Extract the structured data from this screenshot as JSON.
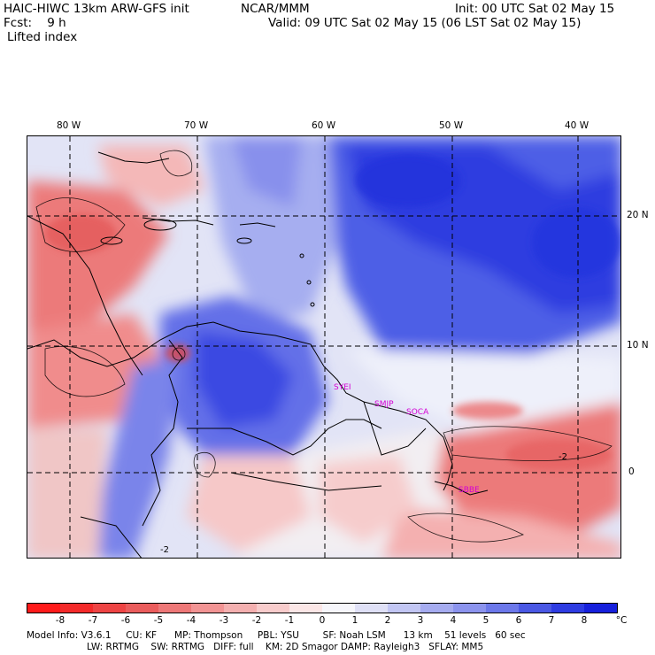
{
  "header": {
    "title": "HAIC-HIWC 13km ARW-GFS init",
    "org": "NCAR/MMM",
    "init": "Init: 00 UTC Sat 02 May 15",
    "forecast": "Fcst:    9 h",
    "valid": "Valid: 09 UTC Sat 02 May 15 (06 LST Sat 02 May 15)",
    "field": "Lifted index"
  },
  "map": {
    "lon_labels": [
      "80 W",
      "70 W",
      "60 W",
      "50 W",
      "40 W"
    ],
    "lat_labels": [
      "20 N",
      "10 N",
      "0"
    ],
    "stations": [
      "SYEI",
      "SMJP",
      "SOCA",
      "SBBE"
    ],
    "contour_labels": [
      "-2",
      "-2"
    ],
    "colors": {
      "strong_positive": "#2436e0",
      "positive": "#6c7ef0",
      "weak_positive": "#c6ccf4",
      "neutral": "#f8f4f4",
      "weak_negative": "#f4c2c2",
      "negative": "#ec7a7a",
      "station_text": "#d400d4"
    }
  },
  "colorbar": {
    "ticks": [
      "-8",
      "-7",
      "-6",
      "-5",
      "-4",
      "-3",
      "-2",
      "-1",
      "0",
      "1",
      "2",
      "3",
      "4",
      "5",
      "6",
      "7",
      "8"
    ],
    "unit": "°C",
    "colors": [
      "#ff1a1a",
      "#f42a2a",
      "#ee4444",
      "#ea5c5c",
      "#ee7878",
      "#f29494",
      "#f4b0b0",
      "#f8cccc",
      "#fbe6e6",
      "#f6f6fb",
      "#dfe0f6",
      "#c2c6f3",
      "#a6acf0",
      "#8c94ee",
      "#6c78ea",
      "#4a58e4",
      "#2e3ce2",
      "#1620dc"
    ]
  },
  "footer": {
    "line1": "Model Info: V3.6.1     CU: KF      MP: Thompson     PBL: YSU        SF: Noah LSM      13 km    51 levels   60 sec",
    "line2": "LW: RRTMG    SW: RRTMG   DIFF: full    KM: 2D Smagor DAMP: Rayleigh3   SFLAY: MM5"
  }
}
